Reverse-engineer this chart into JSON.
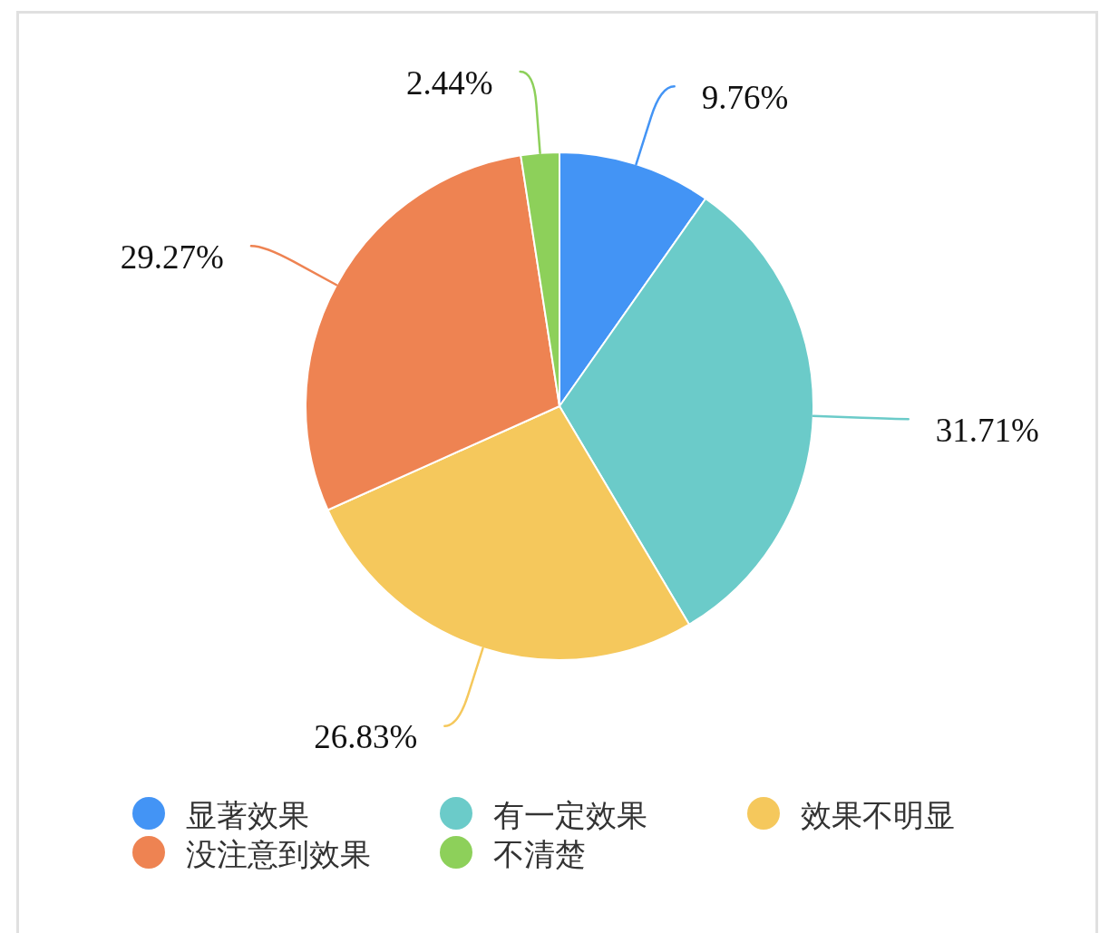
{
  "chart_data": {
    "type": "pie",
    "categories": [
      "显著效果",
      "有一定效果",
      "效果不明显",
      "没注意到效果",
      "不清楚"
    ],
    "values": [
      9.76,
      31.71,
      26.83,
      29.27,
      2.44
    ],
    "colors": [
      "#4394f5",
      "#6bcbc9",
      "#f5c85c",
      "#ee8352",
      "#8dd05a"
    ],
    "value_labels": [
      "9.76%",
      "31.71%",
      "26.83%",
      "29.27%",
      "2.44%"
    ],
    "legend": "bottom"
  }
}
